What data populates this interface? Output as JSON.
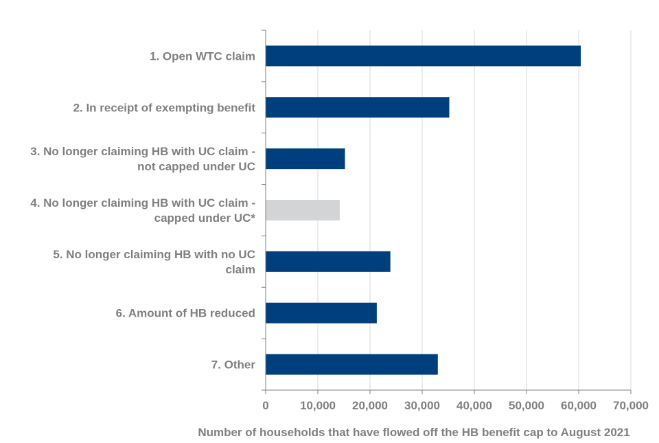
{
  "colors": {
    "bar_primary": "#003f7d",
    "bar_highlight": "#d3d4d6",
    "gridline": "#d9d9d9",
    "axis_line": "#7f7f7f",
    "text": "#7f7f7f"
  },
  "chart_data": {
    "type": "bar",
    "orientation": "horizontal",
    "title": "",
    "xlabel": "Number of households that have flowed off the HB benefit cap to August 2021",
    "ylabel": "",
    "categories": [
      [
        "1. Open WTC claim"
      ],
      [
        "2. In receipt of exempting benefit"
      ],
      [
        "3. No longer claiming HB with UC claim -",
        "not capped under UC"
      ],
      [
        "4. No longer claiming HB with UC claim -",
        "capped under UC*"
      ],
      [
        "5. No longer claiming HB with no UC",
        "claim"
      ],
      [
        "6. Amount of HB reduced"
      ],
      [
        "7. Other"
      ]
    ],
    "values": [
      60400,
      35200,
      15200,
      14200,
      23900,
      21300,
      33000
    ],
    "bar_colors": [
      "primary",
      "primary",
      "primary",
      "highlight",
      "primary",
      "primary",
      "primary"
    ],
    "xlim": [
      0,
      70000
    ],
    "xticks": [
      0,
      10000,
      20000,
      30000,
      40000,
      50000,
      60000,
      70000
    ],
    "xtick_labels": [
      "0",
      "10,000",
      "20,000",
      "30,000",
      "40,000",
      "50,000",
      "60,000",
      "70,000"
    ],
    "grid": "vertical",
    "legend": "none"
  }
}
